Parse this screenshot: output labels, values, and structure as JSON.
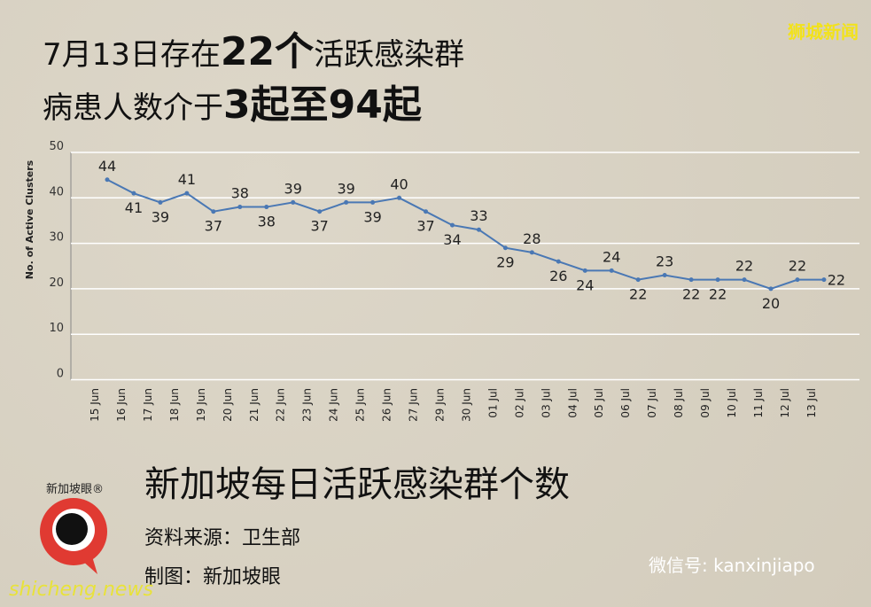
{
  "chart_data": {
    "type": "line",
    "headline": [
      [
        "7月13日存在",
        "22个",
        "活跃感染群"
      ],
      [
        "病患人数介于",
        "3起至94起"
      ]
    ],
    "title": "新加坡每日活跃感染群个数",
    "source": "资料来源：卫生部",
    "credit": "制图：新加坡眼",
    "brand": "新加坡眼®",
    "watermark": "狮城新闻",
    "wechat": "微信号: kanxinjiapo",
    "site": "shicheng.news",
    "y_label": "No. of Active Clusters",
    "categories": [
      "15 Jun",
      "16 Jun",
      "17 Jun",
      "18 Jun",
      "19 Jun",
      "20 Jun",
      "21 Jun",
      "22 Jun",
      "23 Jun",
      "24 Jun",
      "25 Jun",
      "26 Jun",
      "27 Jun",
      "29 Jun",
      "30 Jun",
      "01 Jul",
      "02 Jul",
      "03 Jul",
      "04 Jul",
      "05 Jul",
      "06 Jul",
      "07 Jul",
      "08 Jul",
      "09 Jul",
      "10 Jul",
      "11 Jul",
      "12 Jul",
      "13 Jul"
    ],
    "series": [
      {
        "name": "No. of Active Clusters",
        "color": "#4a78b4",
        "values": [
          44,
          41,
          39,
          41,
          37,
          38,
          38,
          39,
          37,
          39,
          39,
          40,
          37,
          34,
          33,
          29,
          28,
          26,
          24,
          24,
          22,
          23,
          22,
          22,
          22,
          20,
          22,
          22
        ]
      }
    ],
    "ylim": [
      0,
      50
    ],
    "yticks": [
      0,
      10,
      20,
      30,
      40,
      50
    ],
    "grid": true
  }
}
